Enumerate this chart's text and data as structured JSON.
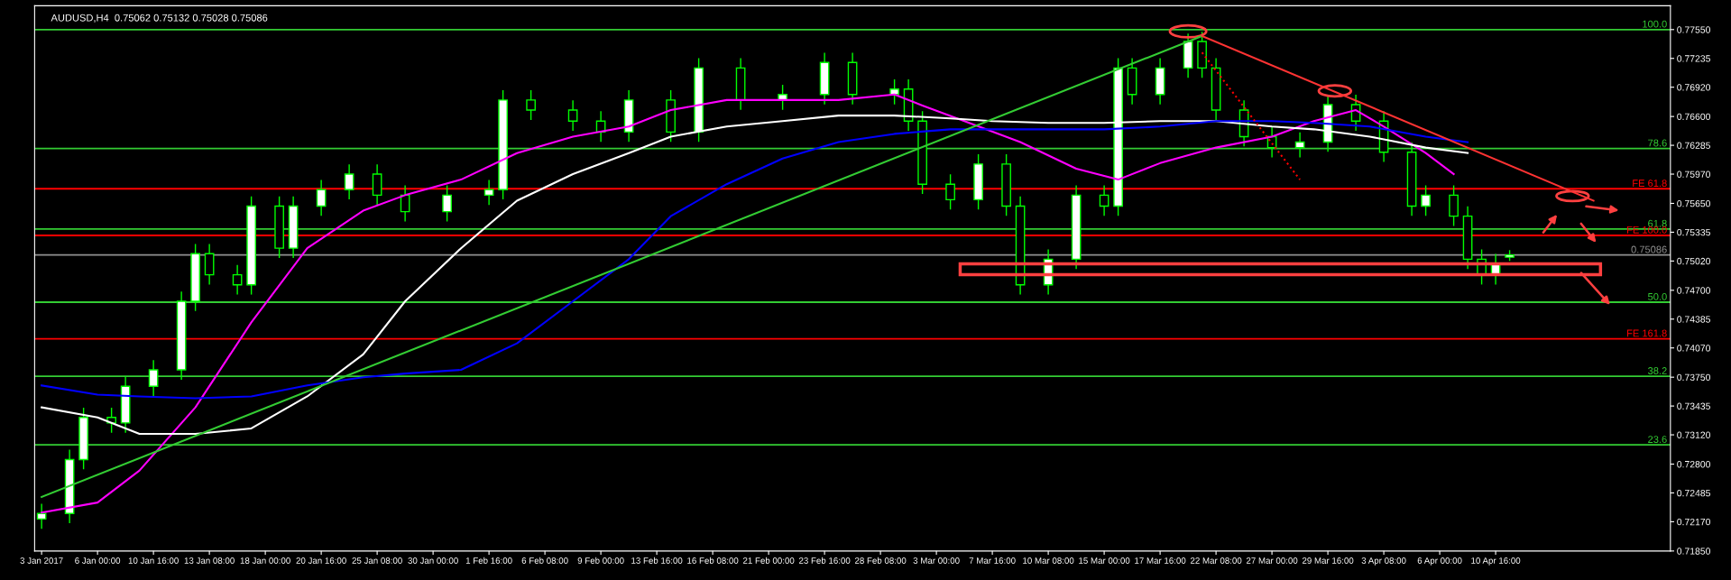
{
  "chart_data": {
    "type": "candlestick",
    "title": "AUDUSD,H4  0.75062 0.75132 0.75028 0.75086",
    "categories": [
      "3 Jan 2017",
      null,
      null,
      null,
      "6 Jan 00:00",
      null,
      null,
      null,
      "10 Jan 16:00",
      null,
      null,
      null,
      "13 Jan 08:00",
      null,
      null,
      null,
      "18 Jan 00:00",
      null,
      null,
      null,
      "20 Jan 16:00",
      null,
      null,
      null,
      "25 Jan 08:00",
      null,
      null,
      null,
      "30 Jan 00:00",
      null,
      null,
      null,
      "1 Feb 16:00",
      null,
      null,
      null,
      "6 Feb 08:00",
      null,
      null,
      null,
      "9 Feb 00:00",
      null,
      null,
      null,
      "13 Feb 16:00",
      null,
      null,
      null,
      "16 Feb 08:00",
      null,
      null,
      null,
      "21 Feb 00:00",
      null,
      null,
      null,
      "23 Feb 16:00",
      null,
      null,
      null,
      "28 Feb 08:00",
      null,
      null,
      null,
      "3 Mar 00:00",
      null,
      null,
      null,
      "7 Mar 16:00",
      null,
      null,
      null,
      "10 Mar 08:00",
      null,
      null,
      null,
      "15 Mar 00:00",
      null,
      null,
      null,
      "17 Mar 16:00",
      null,
      null,
      null,
      "22 Mar 08:00",
      null,
      null,
      null,
      "27 Mar 00:00",
      null,
      null,
      null,
      "29 Mar 16:00",
      null,
      null,
      null,
      "3 Apr 08:00",
      null,
      null,
      null,
      "6 Apr 00:00",
      null,
      null,
      null,
      "10 Apr 16:00",
      null,
      null,
      null,
      null,
      null,
      null,
      null,
      null,
      null,
      null,
      null,
      null
    ],
    "ohlc": [
      [
        0.722,
        0.7236,
        0.721,
        0.7226
      ],
      null,
      [
        0.7226,
        0.7295,
        0.7216,
        0.7285
      ],
      [
        0.7285,
        0.7341,
        0.7275,
        0.7331
      ],
      null,
      [
        0.7331,
        0.7341,
        0.7315,
        0.7325
      ],
      [
        0.7325,
        0.7375,
        0.7315,
        0.7365
      ],
      null,
      [
        0.7365,
        0.7393,
        0.7355,
        0.7383
      ],
      null,
      [
        0.7383,
        0.7468,
        0.7373,
        0.7458
      ],
      [
        0.7458,
        0.752,
        0.7448,
        0.751
      ],
      [
        0.751,
        0.752,
        0.7477,
        0.7487
      ],
      null,
      [
        0.7487,
        0.7497,
        0.7466,
        0.7476
      ],
      [
        0.7476,
        0.7572,
        0.7466,
        0.7562
      ],
      null,
      [
        0.7562,
        0.7572,
        0.7506,
        0.7516
      ],
      [
        0.7516,
        0.7572,
        0.7506,
        0.7562
      ],
      null,
      [
        0.7562,
        0.759,
        0.7552,
        0.758
      ],
      null,
      [
        0.758,
        0.7607,
        0.757,
        0.7597
      ],
      null,
      [
        0.7597,
        0.7607,
        0.7564,
        0.7574
      ],
      null,
      [
        0.7574,
        0.7584,
        0.7546,
        0.7556
      ],
      null,
      null,
      [
        0.7556,
        0.7584,
        0.7546,
        0.7574
      ],
      null,
      null,
      [
        0.7574,
        0.759,
        0.7564,
        0.758
      ],
      [
        0.758,
        0.7688,
        0.757,
        0.7678
      ],
      null,
      [
        0.7678,
        0.7688,
        0.7657,
        0.7667
      ],
      null,
      null,
      [
        0.7667,
        0.7677,
        0.7645,
        0.7655
      ],
      null,
      [
        0.7655,
        0.7665,
        0.7633,
        0.7643
      ],
      null,
      [
        0.7643,
        0.7688,
        0.7633,
        0.7678
      ],
      null,
      null,
      [
        0.7678,
        0.7688,
        0.7633,
        0.7643
      ],
      null,
      [
        0.7643,
        0.7723,
        0.7633,
        0.7713
      ],
      null,
      null,
      [
        0.7713,
        0.7723,
        0.7668,
        0.7678
      ],
      null,
      null,
      [
        0.7678,
        0.7694,
        0.7668,
        0.7684
      ],
      null,
      null,
      [
        0.7684,
        0.7729,
        0.7674,
        0.7719
      ],
      null,
      [
        0.7719,
        0.7729,
        0.7674,
        0.7684
      ],
      null,
      null,
      [
        0.7684,
        0.77,
        0.7674,
        0.769
      ],
      [
        0.769,
        0.77,
        0.7645,
        0.7655
      ],
      [
        0.7655,
        0.7665,
        0.7576,
        0.7586
      ],
      null,
      [
        0.7586,
        0.7596,
        0.7559,
        0.7569
      ],
      null,
      [
        0.7569,
        0.7618,
        0.7559,
        0.7608
      ],
      null,
      [
        0.7608,
        0.7618,
        0.7552,
        0.7562
      ],
      [
        0.7562,
        0.7572,
        0.7466,
        0.7476
      ],
      null,
      [
        0.7476,
        0.7514,
        0.7466,
        0.7504
      ],
      null,
      [
        0.7504,
        0.7584,
        0.7494,
        0.7574
      ],
      null,
      [
        0.7574,
        0.7584,
        0.7552,
        0.7562
      ],
      [
        0.7562,
        0.7723,
        0.7552,
        0.7713
      ],
      [
        0.7713,
        0.7723,
        0.7674,
        0.7684
      ],
      null,
      [
        0.7684,
        0.7723,
        0.7674,
        0.7713
      ],
      null,
      [
        0.7713,
        0.775,
        0.7703,
        0.7742
      ],
      [
        0.7742,
        0.7752,
        0.7703,
        0.7713
      ],
      [
        0.7713,
        0.7723,
        0.7657,
        0.7667
      ],
      null,
      [
        0.7667,
        0.7677,
        0.7628,
        0.7638
      ],
      null,
      [
        0.7638,
        0.7648,
        0.7616,
        0.7626
      ],
      null,
      [
        0.7626,
        0.7642,
        0.7616,
        0.7632
      ],
      null,
      [
        0.7632,
        0.7683,
        0.7622,
        0.7673
      ],
      null,
      [
        0.7673,
        0.7683,
        0.7645,
        0.7655
      ],
      null,
      [
        0.7655,
        0.7665,
        0.7611,
        0.7621
      ],
      null,
      [
        0.7621,
        0.7631,
        0.7552,
        0.7562
      ],
      [
        0.7562,
        0.7584,
        0.7552,
        0.7574
      ],
      null,
      [
        0.7574,
        0.7584,
        0.7541,
        0.7551
      ],
      [
        0.7551,
        0.7561,
        0.7494,
        0.7504
      ],
      [
        0.7504,
        0.7514,
        0.7477,
        0.7487
      ],
      [
        0.7487,
        0.7509,
        0.7477,
        0.7499
      ],
      [
        0.75062,
        0.75132,
        0.75028,
        0.75086
      ],
      null,
      null,
      null,
      null,
      null,
      null,
      null,
      null,
      null,
      null,
      null
    ],
    "color": "#00ff00",
    "series": [
      {
        "type": "line",
        "color": "#ff00ff",
        "values": [
          0.7227,
          null,
          null,
          null,
          0.7238,
          null,
          null,
          0.7273,
          null,
          null,
          null,
          0.7342,
          null,
          null,
          null,
          0.7435,
          null,
          null,
          null,
          0.7516,
          null,
          null,
          null,
          0.7557,
          null,
          null,
          0.7574,
          null,
          null,
          null,
          0.7591,
          null,
          null,
          null,
          0.762,
          null,
          null,
          null,
          0.7638,
          null,
          null,
          null,
          0.7649,
          null,
          null,
          0.7667,
          null,
          null,
          null,
          0.7678,
          null,
          null,
          null,
          0.7678,
          null,
          null,
          null,
          0.7678,
          null,
          null,
          null,
          0.7684,
          null,
          0.7672,
          null,
          null,
          0.7655,
          null,
          null,
          null,
          0.7632,
          null,
          null,
          null,
          0.7603,
          null,
          null,
          0.7591,
          null,
          null,
          0.7609,
          null,
          null,
          null,
          0.7626,
          null,
          null,
          null,
          0.7638,
          null,
          null,
          0.7655,
          null,
          null,
          0.7667,
          null,
          0.7649,
          null,
          null,
          0.762,
          null,
          0.7597,
          null,
          null,
          null,
          null,
          null,
          null,
          null,
          null,
          null,
          null,
          null,
          null,
          null,
          null,
          null
        ]
      },
      {
        "type": "line",
        "color": "#ffffff",
        "values": [
          0.7342,
          null,
          null,
          null,
          0.7331,
          null,
          null,
          0.7313,
          null,
          null,
          null,
          0.7313,
          null,
          null,
          null,
          0.7319,
          null,
          null,
          null,
          0.7354,
          null,
          null,
          null,
          0.74,
          null,
          null,
          0.7458,
          null,
          null,
          null,
          0.7516,
          null,
          null,
          null,
          0.7568,
          null,
          null,
          null,
          0.7597,
          null,
          null,
          null,
          0.762,
          null,
          null,
          0.7638,
          null,
          null,
          null,
          0.7649,
          null,
          null,
          null,
          0.7655,
          null,
          null,
          null,
          0.7661,
          null,
          null,
          null,
          0.7661,
          null,
          null,
          null,
          0.7658,
          null,
          null,
          0.7655,
          null,
          null,
          null,
          0.7653,
          null,
          null,
          null,
          0.7653,
          null,
          null,
          null,
          0.7655,
          null,
          null,
          null,
          0.7655,
          null,
          null,
          null,
          0.7649,
          null,
          null,
          0.7646,
          null,
          null,
          null,
          0.7638,
          null,
          null,
          null,
          0.7626,
          null,
          null,
          0.762,
          null,
          null,
          null,
          null,
          null,
          null,
          null,
          null,
          null,
          null,
          null,
          null,
          null,
          null
        ]
      },
      {
        "type": "line",
        "color": "#0000ff",
        "values": [
          0.7366,
          null,
          null,
          null,
          0.7356,
          null,
          null,
          0.7354,
          null,
          null,
          null,
          0.7352,
          null,
          null,
          null,
          0.7354,
          null,
          null,
          null,
          0.7366,
          null,
          null,
          null,
          0.7375,
          null,
          null,
          0.7379,
          null,
          null,
          null,
          0.7383,
          null,
          null,
          null,
          0.7412,
          null,
          null,
          null,
          0.7458,
          null,
          null,
          null,
          0.7504,
          null,
          null,
          0.7551,
          null,
          null,
          null,
          0.7586,
          null,
          null,
          null,
          0.7614,
          null,
          null,
          null,
          0.7632,
          null,
          null,
          null,
          0.7641,
          null,
          null,
          null,
          0.7646,
          null,
          null,
          0.7646,
          null,
          null,
          null,
          0.7646,
          null,
          null,
          null,
          0.7646,
          null,
          null,
          null,
          0.7649,
          null,
          null,
          null,
          0.7655,
          null,
          null,
          null,
          0.7655,
          null,
          null,
          0.7653,
          null,
          null,
          null,
          0.7649,
          null,
          null,
          null,
          0.7638,
          null,
          null,
          0.7632,
          null,
          null,
          null,
          null,
          null,
          null,
          null,
          null,
          null,
          null,
          null,
          null,
          null,
          null
        ]
      },
      {
        "type": "line",
        "color": "#33cc33",
        "values": [
          0.7244,
          null,
          null,
          null,
          null,
          null,
          null,
          null,
          null,
          null,
          null,
          null,
          null,
          null,
          null,
          null,
          null,
          null,
          null,
          null,
          null,
          null,
          null,
          null,
          null,
          null,
          null,
          null,
          null,
          null,
          null,
          null,
          null,
          null,
          null,
          null,
          null,
          null,
          null,
          null,
          null,
          null,
          null,
          null,
          null,
          null,
          null,
          null,
          null,
          null,
          null,
          null,
          null,
          null,
          null,
          null,
          null,
          null,
          null,
          null,
          null,
          null,
          null,
          null,
          null,
          null,
          null,
          null,
          null,
          null,
          null,
          null,
          null,
          null,
          null,
          null,
          null,
          null,
          null,
          null,
          null,
          null,
          null,
          0.7748,
          null,
          null,
          null,
          null,
          null,
          null,
          null,
          null,
          null,
          null,
          null,
          null,
          null,
          null,
          null,
          null,
          null,
          null,
          null,
          null,
          null,
          null,
          null,
          null,
          null,
          null,
          null,
          null,
          null,
          null,
          null,
          null,
          null
        ]
      },
      {
        "type": "line",
        "color": "#ff3333",
        "values": [
          null,
          null,
          null,
          null,
          null,
          null,
          null,
          null,
          null,
          null,
          null,
          null,
          null,
          null,
          null,
          null,
          null,
          null,
          null,
          null,
          null,
          null,
          null,
          null,
          null,
          null,
          null,
          null,
          null,
          null,
          null,
          null,
          null,
          null,
          null,
          null,
          null,
          null,
          null,
          null,
          null,
          null,
          null,
          null,
          null,
          null,
          null,
          null,
          null,
          null,
          null,
          null,
          null,
          null,
          null,
          null,
          null,
          null,
          null,
          null,
          null,
          null,
          null,
          null,
          null,
          null,
          null,
          null,
          null,
          null,
          null,
          null,
          null,
          null,
          null,
          null,
          null,
          null,
          null,
          null,
          null,
          null,
          null,
          0.7748,
          null,
          null,
          null,
          null,
          null,
          null,
          null,
          null,
          null,
          null,
          null,
          null,
          null,
          null,
          null,
          null,
          null,
          null,
          null,
          null,
          null,
          null,
          null,
          null,
          null,
          null,
          null,
          0.7568,
          null,
          null,
          null,
          null,
          null
        ]
      },
      {
        "type": "line",
        "color": "#ff0000",
        "line_style": "dotted",
        "values": [
          null,
          null,
          null,
          null,
          null,
          null,
          null,
          null,
          null,
          null,
          null,
          null,
          null,
          null,
          null,
          null,
          null,
          null,
          null,
          null,
          null,
          null,
          null,
          null,
          null,
          null,
          null,
          null,
          null,
          null,
          null,
          null,
          null,
          null,
          null,
          null,
          null,
          null,
          null,
          null,
          null,
          null,
          null,
          null,
          null,
          null,
          null,
          null,
          null,
          null,
          null,
          null,
          null,
          null,
          null,
          null,
          null,
          null,
          null,
          null,
          null,
          null,
          null,
          null,
          null,
          null,
          null,
          null,
          null,
          null,
          null,
          null,
          null,
          null,
          null,
          null,
          null,
          null,
          null,
          null,
          null,
          null,
          null,
          0.773,
          null,
          null,
          null,
          null,
          null,
          null,
          0.7591,
          null,
          null,
          null,
          null,
          null,
          null,
          null,
          null,
          null,
          null,
          null,
          null,
          null,
          null,
          null,
          null,
          null,
          null,
          null,
          null,
          null,
          null,
          null,
          null,
          null,
          null
        ]
      }
    ],
    "ylim": [
      0.7185,
      0.7781
    ],
    "yticks": [
      {
        "value": 0.7755,
        "label": "0.77550"
      },
      {
        "value": 0.77235,
        "label": "0.77235"
      },
      {
        "value": 0.7692,
        "label": "0.76920"
      },
      {
        "value": 0.766,
        "label": "0.76600"
      },
      {
        "value": 0.76285,
        "label": "0.76285"
      },
      {
        "value": 0.7597,
        "label": "0.75970"
      },
      {
        "value": 0.7565,
        "label": "0.75650"
      },
      {
        "value": 0.75335,
        "label": "0.75335"
      },
      {
        "value": 0.7502,
        "label": "0.75020"
      },
      {
        "value": 0.747,
        "label": "0.74700"
      },
      {
        "value": 0.74385,
        "label": "0.74385"
      },
      {
        "value": 0.7407,
        "label": "0.74070"
      },
      {
        "value": 0.7375,
        "label": "0.73750"
      },
      {
        "value": 0.73435,
        "label": "0.73435"
      },
      {
        "value": 0.7312,
        "label": "0.73120"
      },
      {
        "value": 0.728,
        "label": "0.72800"
      },
      {
        "value": 0.72485,
        "label": "0.72485"
      },
      {
        "value": 0.7217,
        "label": "0.72170"
      },
      {
        "value": 0.7185,
        "label": "0.71850"
      }
    ],
    "ref_lines": [
      {
        "axis": "y",
        "value": 0.7755,
        "color": "#33cc33"
      },
      {
        "axis": "y",
        "value": 0.7625,
        "color": "#33cc33"
      },
      {
        "axis": "y",
        "value": 0.7537,
        "color": "#33cc33"
      },
      {
        "axis": "y",
        "value": 0.7457,
        "color": "#33cc33"
      },
      {
        "axis": "y",
        "value": 0.7376,
        "color": "#33cc33"
      },
      {
        "axis": "y",
        "value": 0.7301,
        "color": "#33cc33"
      },
      {
        "axis": "y",
        "value": 0.7581,
        "color": "#ff0000"
      },
      {
        "axis": "y",
        "value": 0.753,
        "color": "#ff0000"
      },
      {
        "axis": "y",
        "value": 0.7417,
        "color": "#ff0000"
      },
      {
        "axis": "y",
        "value": 0.75086,
        "label": "0.75086",
        "color": "#909090"
      }
    ],
    "annotations": [
      {
        "text": "100.0",
        "y": 0.7755
      },
      {
        "text": "78.6",
        "y": 0.7625
      },
      {
        "text": "61.8",
        "y": 0.7537
      },
      {
        "text": "50.0",
        "y": 0.7457
      },
      {
        "text": "38.2",
        "y": 0.7376
      },
      {
        "text": "23.6",
        "y": 0.7301
      },
      {
        "text": "FE 61.8",
        "y": 0.7581
      },
      {
        "text": "FE 100.0",
        "y": 0.753
      },
      {
        "text": "FE 161.8",
        "y": 0.7417
      }
    ],
    "grid": false,
    "legend": false
  }
}
